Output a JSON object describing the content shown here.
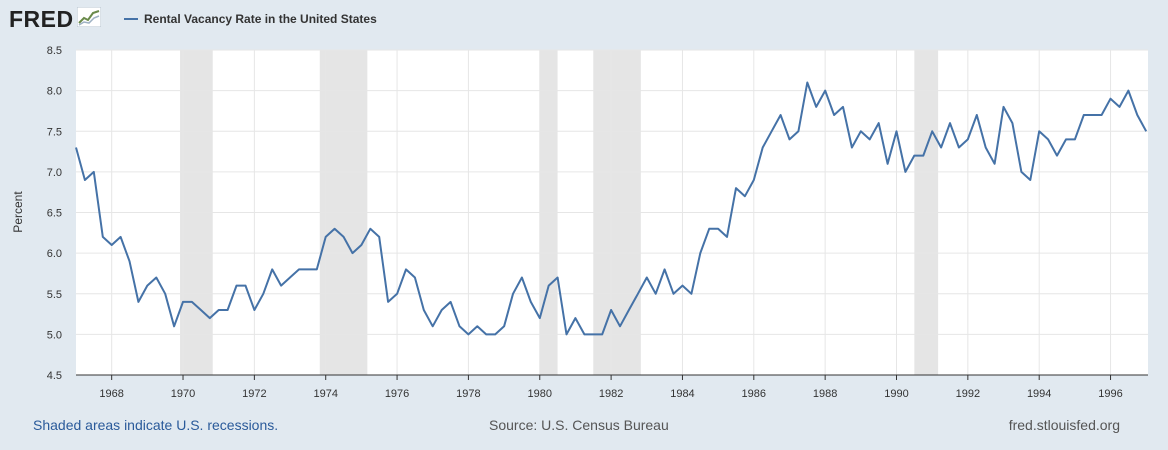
{
  "header": {
    "logo_text": "FRED",
    "logo_icon": "trend-chart-icon"
  },
  "chart_data": {
    "type": "line",
    "title": "Rental Vacancy Rate in the United States",
    "ylabel": "Percent",
    "xlabel": "",
    "ylim": [
      4.5,
      8.5
    ],
    "yticks": [
      "4.5",
      "5.0",
      "5.5",
      "6.0",
      "6.5",
      "7.0",
      "7.5",
      "8.0",
      "8.5"
    ],
    "xticks": [
      "1968",
      "1970",
      "1972",
      "1974",
      "1976",
      "1978",
      "1980",
      "1982",
      "1984",
      "1986",
      "1988",
      "1990",
      "1992",
      "1994",
      "1996"
    ],
    "grid": true,
    "legend_position": "top-left",
    "series_color": "#4572a7",
    "recession_color": "#e5e5e5",
    "recessions": [
      [
        "1969-12",
        "1970-11"
      ],
      [
        "1973-11",
        "1975-03"
      ],
      [
        "1980-01",
        "1980-07"
      ],
      [
        "1981-07",
        "1982-11"
      ],
      [
        "1990-07",
        "1991-03"
      ]
    ],
    "series": [
      {
        "name": "Rental Vacancy Rate in the United States",
        "x": [
          "1967-01",
          "1967-04",
          "1967-07",
          "1967-10",
          "1968-01",
          "1968-04",
          "1968-07",
          "1968-10",
          "1969-01",
          "1969-04",
          "1969-07",
          "1969-10",
          "1970-01",
          "1970-04",
          "1970-07",
          "1970-10",
          "1971-01",
          "1971-04",
          "1971-07",
          "1971-10",
          "1972-01",
          "1972-04",
          "1972-07",
          "1972-10",
          "1973-01",
          "1973-04",
          "1973-07",
          "1973-10",
          "1974-01",
          "1974-04",
          "1974-07",
          "1974-10",
          "1975-01",
          "1975-04",
          "1975-07",
          "1975-10",
          "1976-01",
          "1976-04",
          "1976-07",
          "1976-10",
          "1977-01",
          "1977-04",
          "1977-07",
          "1977-10",
          "1978-01",
          "1978-04",
          "1978-07",
          "1978-10",
          "1979-01",
          "1979-04",
          "1979-07",
          "1979-10",
          "1980-01",
          "1980-04",
          "1980-07",
          "1980-10",
          "1981-01",
          "1981-04",
          "1981-07",
          "1981-10",
          "1982-01",
          "1982-04",
          "1982-07",
          "1982-10",
          "1983-01",
          "1983-04",
          "1983-07",
          "1983-10",
          "1984-01",
          "1984-04",
          "1984-07",
          "1984-10",
          "1985-01",
          "1985-04",
          "1985-07",
          "1985-10",
          "1986-01",
          "1986-04",
          "1986-07",
          "1986-10",
          "1987-01",
          "1987-04",
          "1987-07",
          "1987-10",
          "1988-01",
          "1988-04",
          "1988-07",
          "1988-10",
          "1989-01",
          "1989-04",
          "1989-07",
          "1989-10",
          "1990-01",
          "1990-04",
          "1990-07",
          "1990-10",
          "1991-01",
          "1991-04",
          "1991-07",
          "1991-10",
          "1992-01",
          "1992-04",
          "1992-07",
          "1992-10",
          "1993-01",
          "1993-04",
          "1993-07",
          "1993-10",
          "1994-01",
          "1994-04",
          "1994-07",
          "1994-10",
          "1995-01",
          "1995-04",
          "1995-07",
          "1995-10",
          "1996-01",
          "1996-04",
          "1996-07",
          "1996-10",
          "1997-01"
        ],
        "values": [
          7.3,
          6.9,
          7.0,
          6.2,
          6.1,
          6.2,
          5.9,
          5.4,
          5.6,
          5.7,
          5.5,
          5.1,
          5.4,
          5.4,
          5.3,
          5.2,
          5.3,
          5.3,
          5.6,
          5.6,
          5.3,
          5.5,
          5.8,
          5.6,
          5.7,
          5.8,
          5.8,
          5.8,
          6.2,
          6.3,
          6.2,
          6.0,
          6.1,
          6.3,
          6.2,
          5.4,
          5.5,
          5.8,
          5.7,
          5.3,
          5.1,
          5.3,
          5.4,
          5.1,
          5.0,
          5.1,
          5.0,
          5.0,
          5.1,
          5.5,
          5.7,
          5.4,
          5.2,
          5.6,
          5.7,
          5.0,
          5.2,
          5.0,
          5.0,
          5.0,
          5.3,
          5.1,
          5.3,
          5.5,
          5.7,
          5.5,
          5.8,
          5.5,
          5.6,
          5.5,
          6.0,
          6.3,
          6.3,
          6.2,
          6.8,
          6.7,
          6.9,
          7.3,
          7.5,
          7.7,
          7.4,
          7.5,
          8.1,
          7.8,
          8.0,
          7.7,
          7.8,
          7.3,
          7.5,
          7.4,
          7.6,
          7.1,
          7.5,
          7.0,
          7.2,
          7.2,
          7.5,
          7.3,
          7.6,
          7.3,
          7.4,
          7.7,
          7.3,
          7.1,
          7.8,
          7.6,
          7.0,
          6.9,
          7.5,
          7.4,
          7.2,
          7.4,
          7.4,
          7.7,
          7.7,
          7.7,
          7.9,
          7.8,
          8.0,
          7.7,
          7.5
        ]
      }
    ]
  },
  "footer": {
    "recession_note": "Shaded areas indicate U.S. recessions.",
    "source": "Source: U.S. Census Bureau",
    "site": "fred.stlouisfed.org"
  }
}
